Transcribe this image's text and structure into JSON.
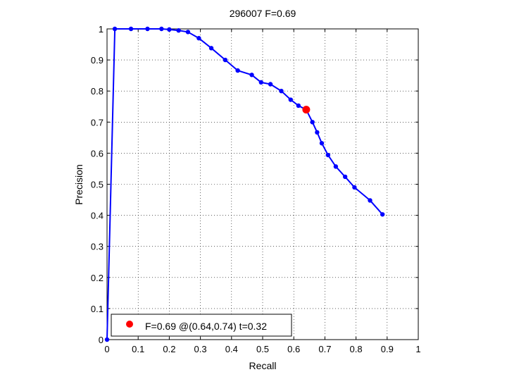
{
  "chart_data": {
    "type": "line",
    "title": "296007 F=0.69",
    "xlabel": "Recall",
    "ylabel": "Precision",
    "xlim": [
      0,
      1
    ],
    "ylim": [
      0,
      1
    ],
    "xticks": [
      0,
      0.1,
      0.2,
      0.3,
      0.4,
      0.5,
      0.6,
      0.7,
      0.8,
      0.9,
      1
    ],
    "yticks": [
      0,
      0.1,
      0.2,
      0.3,
      0.4,
      0.5,
      0.6,
      0.7,
      0.8,
      0.9,
      1
    ],
    "xtick_labels": [
      "0",
      "0.1",
      "0.2",
      "0.3",
      "0.4",
      "0.5",
      "0.6",
      "0.7",
      "0.8",
      "0.9",
      "1"
    ],
    "ytick_labels": [
      "0",
      "0.1",
      "0.2",
      "0.3",
      "0.4",
      "0.5",
      "0.6",
      "0.7",
      "0.8",
      "0.9",
      "1"
    ],
    "grid": true,
    "series": [
      {
        "color": "#0000ff",
        "marker": "dot",
        "x": [
          0,
          0.025,
          0.077,
          0.13,
          0.175,
          0.2,
          0.23,
          0.26,
          0.295,
          0.335,
          0.38,
          0.42,
          0.465,
          0.495,
          0.525,
          0.56,
          0.59,
          0.615,
          0.64,
          0.66,
          0.675,
          0.69,
          0.71,
          0.735,
          0.765,
          0.795,
          0.845,
          0.885
        ],
        "y": [
          0,
          1,
          1,
          1,
          1,
          0.998,
          0.995,
          0.99,
          0.97,
          0.938,
          0.9,
          0.866,
          0.852,
          0.828,
          0.822,
          0.8,
          0.772,
          0.753,
          0.74,
          0.7,
          0.667,
          0.632,
          0.594,
          0.557,
          0.524,
          0.49,
          0.448,
          0.403
        ]
      }
    ],
    "highlight": {
      "x": 0.64,
      "y": 0.74,
      "color": "#ff0000",
      "marker": "dot"
    },
    "legend": {
      "label": "F=0.69 @(0.64,0.74) t=0.32",
      "placement": "bottom-left"
    }
  }
}
